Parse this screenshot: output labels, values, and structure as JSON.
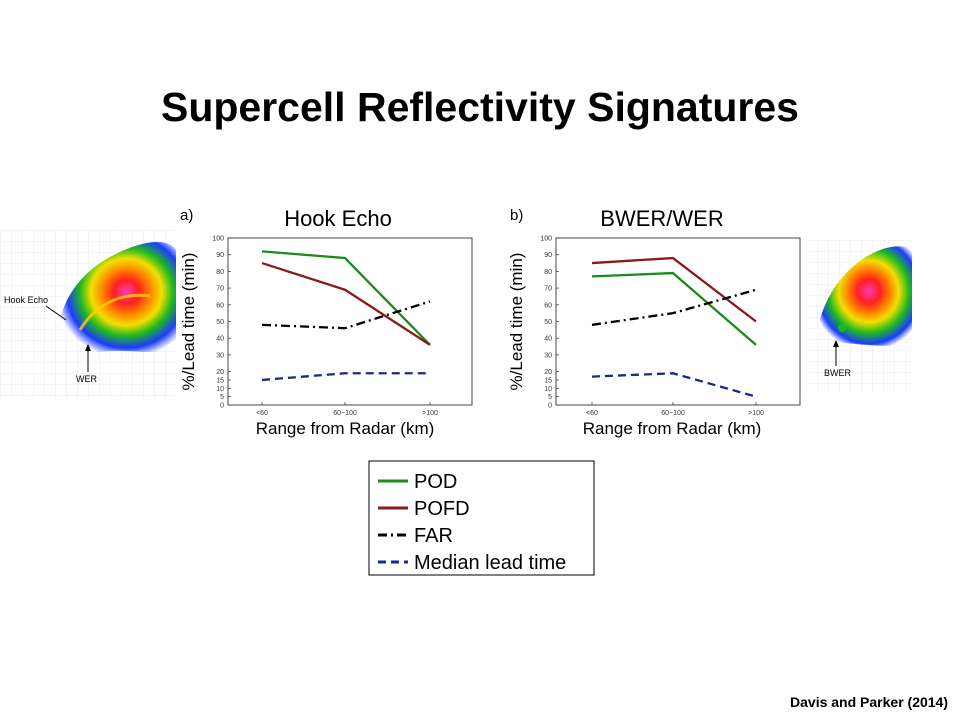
{
  "slide": {
    "title": "Supercell Reflectivity Signatures",
    "citation": "Davis and Parker (2014)"
  },
  "radar_left": {
    "labels": [
      "Hook Echo",
      "WER"
    ]
  },
  "radar_right": {
    "labels": [
      "BWER"
    ]
  },
  "legend": {
    "entries": [
      {
        "name": "POD",
        "color": "#1a8a1a",
        "dash": "solid"
      },
      {
        "name": "POFD",
        "color": "#8b1a1a",
        "dash": "solid"
      },
      {
        "name": "FAR",
        "color": "#000000",
        "dash": "dashdot"
      },
      {
        "name": "Median lead time",
        "color": "#1a2a8a",
        "dash": "dashed"
      }
    ]
  },
  "chart_data": [
    {
      "type": "line",
      "panel": "a)",
      "title": "Hook Echo",
      "xlabel": "Range from Radar (km)",
      "ylabel": "%/Lead time (min)",
      "categories": [
        "<60",
        "60−100",
        ">100"
      ],
      "yticks": [
        "0",
        "5",
        "10",
        "15",
        "20",
        "30",
        "40",
        "50",
        "60",
        "70",
        "80",
        "90",
        "100"
      ],
      "ylim": [
        0,
        100
      ],
      "series": [
        {
          "name": "POD",
          "values": [
            92,
            88,
            36
          ]
        },
        {
          "name": "POFD",
          "values": [
            85,
            69,
            36
          ]
        },
        {
          "name": "FAR",
          "values": [
            48,
            46,
            62
          ]
        },
        {
          "name": "Median lead time",
          "values": [
            15,
            19,
            19
          ]
        }
      ]
    },
    {
      "type": "line",
      "panel": "b)",
      "title": "BWER/WER",
      "xlabel": "Range from Radar (km)",
      "ylabel": "%/Lead time (min)",
      "categories": [
        "<60",
        "60−100",
        ">100"
      ],
      "yticks": [
        "0",
        "5",
        "10",
        "15",
        "20",
        "30",
        "40",
        "50",
        "60",
        "70",
        "80",
        "90",
        "100"
      ],
      "ylim": [
        0,
        100
      ],
      "series": [
        {
          "name": "POD",
          "values": [
            77,
            79,
            36
          ]
        },
        {
          "name": "POFD",
          "values": [
            85,
            88,
            50
          ]
        },
        {
          "name": "FAR",
          "values": [
            48,
            55,
            69
          ]
        },
        {
          "name": "Median lead time",
          "values": [
            17,
            19,
            5
          ]
        }
      ]
    }
  ]
}
